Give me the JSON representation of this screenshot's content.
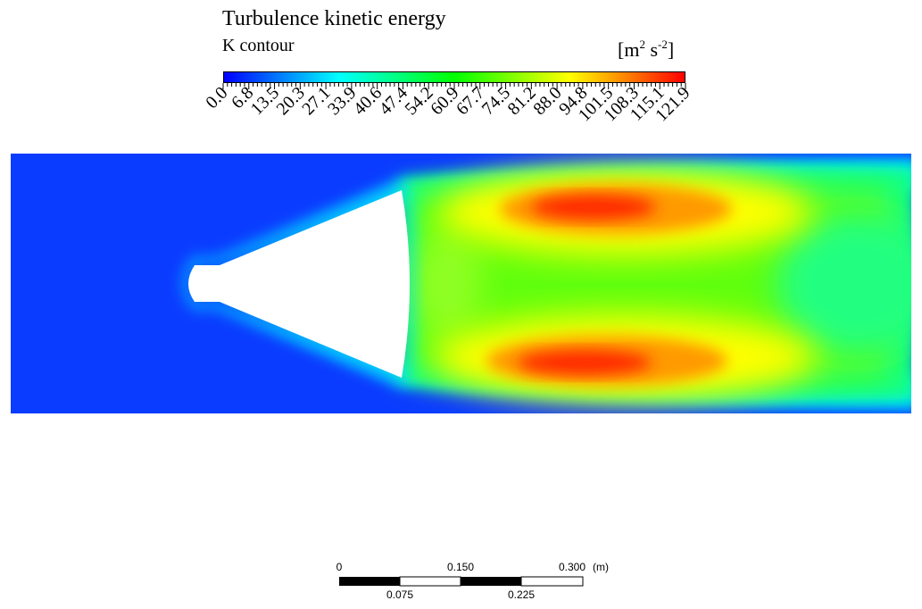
{
  "legend": {
    "title": "Turbulence kinetic energy",
    "subtitle": "K contour",
    "units_base_m": "m",
    "units_exp_m": "2",
    "units_base_s": "s",
    "units_exp_s": "-2",
    "tick_labels": [
      "0.0",
      "6.8",
      "13.5",
      "20.3",
      "27.1",
      "33.9",
      "40.6",
      "47.4",
      "54.2",
      "60.9",
      "67.7",
      "74.5",
      "81.2",
      "88.0",
      "94.8",
      "101.5",
      "108.3",
      "115.1",
      "121.9"
    ],
    "min": 0.0,
    "max": 121.9,
    "colormap": [
      "#0000ff",
      "#0080ff",
      "#00ffff",
      "#00ff80",
      "#00ff00",
      "#80ff00",
      "#ffff00",
      "#ff8000",
      "#ff0000"
    ]
  },
  "scale_bar": {
    "top_labels": [
      "0",
      "0.150",
      "0.300"
    ],
    "bottom_labels": [
      "0.075",
      "0.225"
    ],
    "unit": "(m)"
  },
  "colors": {
    "background_flow": "#0a3cff",
    "body": "#ffffff"
  }
}
